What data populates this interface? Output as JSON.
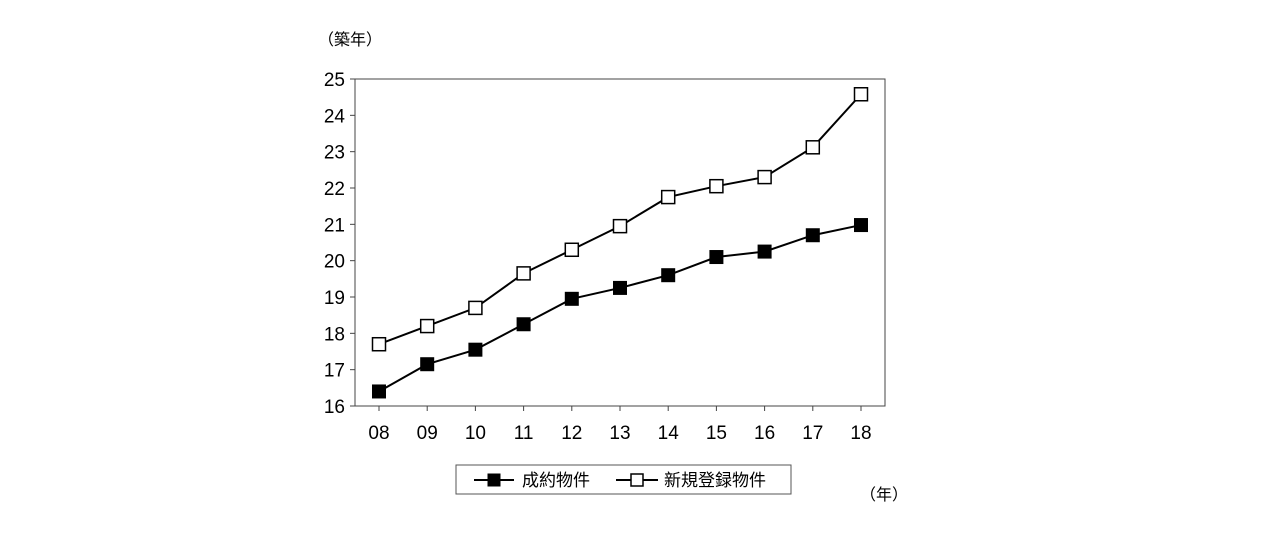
{
  "chart_data": {
    "type": "line",
    "y_unit_label": "（築年）",
    "x_unit_label": "（年）",
    "categories": [
      "08",
      "09",
      "10",
      "11",
      "12",
      "13",
      "14",
      "15",
      "16",
      "17",
      "18"
    ],
    "y_ticks": [
      "16",
      "17",
      "18",
      "19",
      "20",
      "21",
      "22",
      "23",
      "24",
      "25"
    ],
    "ylim": [
      16,
      25
    ],
    "grid": false,
    "legend_position": "bottom",
    "series": [
      {
        "name": "成約物件",
        "marker": "filled-square",
        "color": "#000000",
        "values": [
          16.4,
          17.15,
          17.55,
          18.25,
          18.95,
          19.25,
          19.6,
          20.1,
          20.25,
          20.7,
          20.98
        ]
      },
      {
        "name": "新規登録物件",
        "marker": "hollow-square",
        "color": "#000000",
        "values": [
          17.7,
          18.2,
          18.7,
          19.65,
          20.3,
          20.95,
          21.75,
          22.05,
          22.3,
          23.12,
          24.58
        ]
      }
    ]
  }
}
